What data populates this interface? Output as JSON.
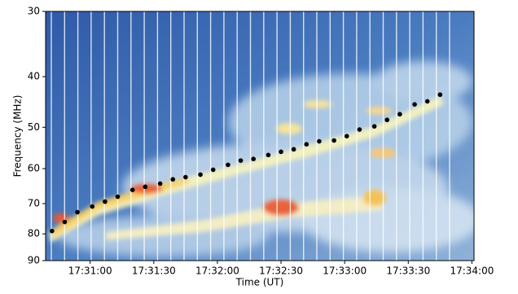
{
  "chart_data": {
    "type": "scatter",
    "xlabel": "Time (UT)",
    "ylabel": "Frequency (MHz)",
    "x": [
      "17:30:42",
      "17:30:48",
      "17:30:54",
      "17:31:01",
      "17:31:07",
      "17:31:13",
      "17:31:20",
      "17:31:26",
      "17:31:33",
      "17:31:39",
      "17:31:45",
      "17:31:52",
      "17:31:58",
      "17:32:05",
      "17:32:11",
      "17:32:17",
      "17:32:24",
      "17:32:30",
      "17:32:36",
      "17:32:42",
      "17:32:48",
      "17:32:55",
      "17:33:01",
      "17:33:07",
      "17:33:14",
      "17:33:20",
      "17:33:26",
      "17:33:33",
      "17:33:39",
      "17:33:45"
    ],
    "values": [
      79.0,
      75.9,
      72.7,
      70.9,
      69.4,
      67.9,
      65.9,
      65.0,
      64.1,
      62.9,
      62.3,
      61.6,
      60.3,
      59.0,
      57.9,
      57.5,
      56.5,
      55.7,
      55.1,
      53.9,
      53.2,
      53.0,
      52.0,
      50.5,
      49.8,
      48.4,
      47.2,
      45.2,
      44.6,
      43.3
    ],
    "color": "#000000",
    "xlim": [
      "17:30:39",
      "17:34:01"
    ],
    "xticks": [
      "17:31:00",
      "17:31:30",
      "17:32:00",
      "17:32:30",
      "17:33:00",
      "17:33:30",
      "17:34:00"
    ],
    "ylim": [
      30,
      90
    ],
    "yticks": [
      30,
      40,
      50,
      60,
      70,
      80,
      90
    ],
    "yscale": "log",
    "y_inverted": true
  }
}
